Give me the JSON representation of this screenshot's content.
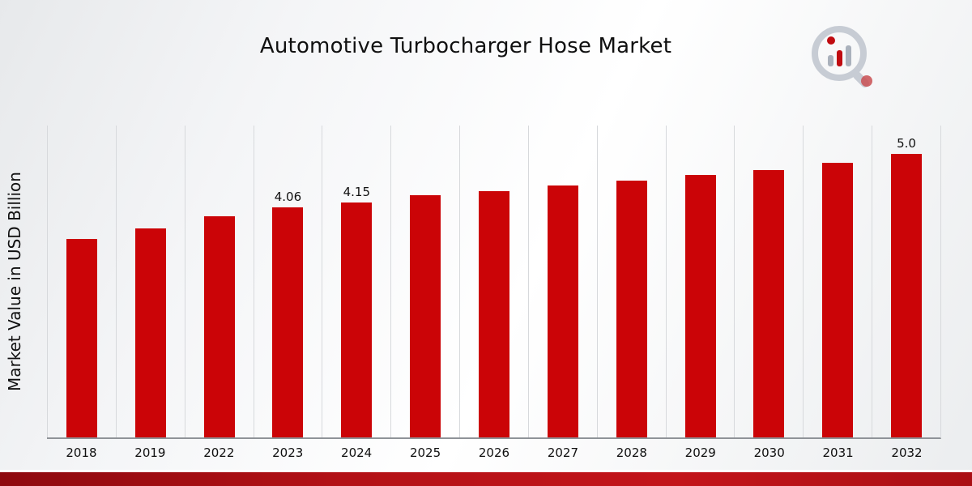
{
  "chart_data": {
    "type": "bar",
    "title": "Automotive Turbocharger Hose Market",
    "ylabel": "Market Value in USD Billion",
    "xlabel": "",
    "categories": [
      "2018",
      "2019",
      "2022",
      "2023",
      "2024",
      "2025",
      "2026",
      "2027",
      "2028",
      "2029",
      "2030",
      "2031",
      "2032"
    ],
    "values": [
      3.5,
      3.68,
      3.9,
      4.06,
      4.15,
      4.27,
      4.35,
      4.45,
      4.53,
      4.63,
      4.72,
      4.85,
      5.0
    ],
    "labels": [
      "",
      "",
      "",
      "4.06",
      "4.15",
      "",
      "",
      "",
      "",
      "",
      "",
      "",
      "5.0"
    ],
    "bar_color": "#cb0407",
    "ylim": [
      0,
      5.5
    ],
    "grid": "vertical",
    "legend": "none"
  },
  "footer": {
    "band_color": "#b31116"
  },
  "logo": {
    "name": "market-research-logo"
  }
}
